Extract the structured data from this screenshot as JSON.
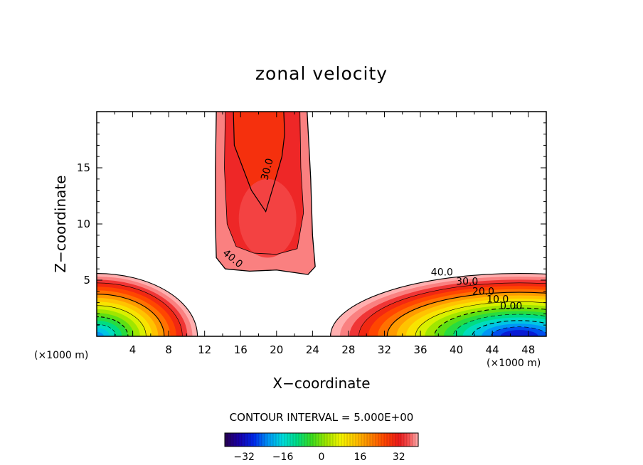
{
  "chart_data": {
    "type": "contour",
    "title": "zonal velocity",
    "xlabel": "X−coordinate",
    "ylabel": "Z−coordinate",
    "x_unit": "(×1000 m)",
    "y_unit": "(×1000 m)",
    "xlim": [
      0,
      50
    ],
    "ylim": [
      0,
      20
    ],
    "x_ticks": [
      4,
      8,
      12,
      16,
      20,
      24,
      28,
      32,
      36,
      40,
      44,
      48
    ],
    "y_ticks": [
      5,
      10,
      15
    ],
    "contour_interval_text": "CONTOUR INTERVAL = 5.000E+00",
    "contour_labels": [
      "30.0",
      "40.0",
      "40.0",
      "30.0",
      "20.0",
      "10.0",
      "0.00"
    ],
    "colorbar": {
      "range": [
        -40,
        40
      ],
      "ticks": [
        -32,
        -16,
        0,
        16,
        32
      ],
      "tick_labels": [
        "−32",
        "−16",
        "0",
        "16",
        "32"
      ]
    }
  }
}
